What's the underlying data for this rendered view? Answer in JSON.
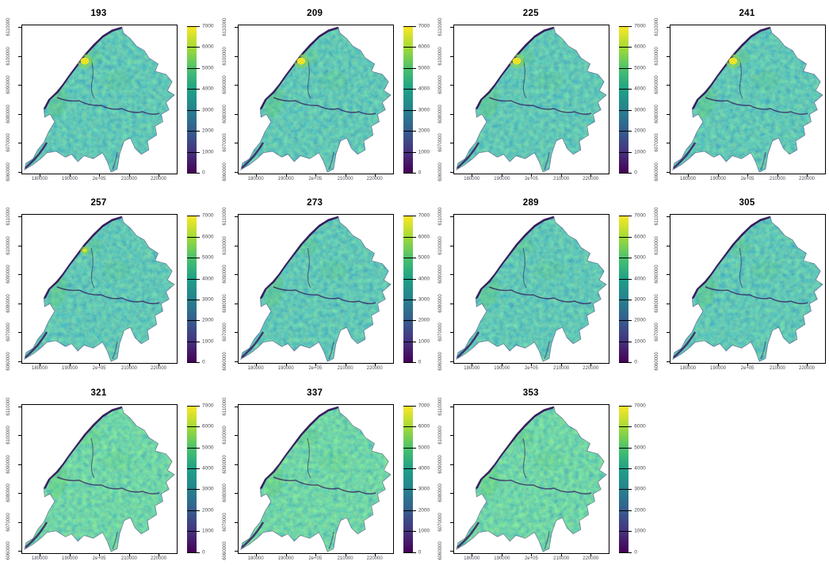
{
  "figure": {
    "background": "#ffffff",
    "title_color": "#000000",
    "tick_label_color": "#4a4a55",
    "panels": [
      {
        "title": "193",
        "hotspot": "large",
        "tone": "teal",
        "has_colorbar": true
      },
      {
        "title": "209",
        "hotspot": "large",
        "tone": "teal",
        "has_colorbar": true
      },
      {
        "title": "225",
        "hotspot": "large",
        "tone": "teal",
        "has_colorbar": true
      },
      {
        "title": "241",
        "hotspot": "large",
        "tone": "teal",
        "has_colorbar": false
      },
      {
        "title": "257",
        "hotspot": "small",
        "tone": "teal",
        "has_colorbar": true
      },
      {
        "title": "273",
        "hotspot": "none",
        "tone": "teal",
        "has_colorbar": true
      },
      {
        "title": "289",
        "hotspot": "none",
        "tone": "teal",
        "has_colorbar": true
      },
      {
        "title": "305",
        "hotspot": "none",
        "tone": "teal",
        "has_colorbar": false
      },
      {
        "title": "321",
        "hotspot": "none",
        "tone": "green",
        "has_colorbar": true
      },
      {
        "title": "337",
        "hotspot": "none",
        "tone": "green",
        "has_colorbar": true
      },
      {
        "title": "353",
        "hotspot": "none",
        "tone": "green",
        "has_colorbar": true
      }
    ],
    "x_ticks": [
      "180000",
      "190000",
      "2e+05",
      "210000",
      "220000"
    ],
    "y_ticks": [
      "6110000",
      "6100000",
      "6090000",
      "6080000",
      "6070000",
      "6060000"
    ],
    "colorbar_ticks": [
      "7000",
      "6000",
      "5000",
      "4000",
      "3000",
      "2000",
      "1000",
      "0"
    ]
  },
  "chart_data": {
    "type": "heatmap",
    "subtype": "raster_map_small_multiples",
    "n_panels": 11,
    "grid": {
      "rows": 3,
      "cols": 4,
      "last_row_panels": 3
    },
    "panel_titles": [
      "193",
      "209",
      "225",
      "241",
      "257",
      "273",
      "289",
      "305",
      "321",
      "337",
      "353"
    ],
    "panel_title_step": 16,
    "x_axis": {
      "tick_values": [
        180000,
        190000,
        200000,
        210000,
        220000
      ],
      "tick_labels": [
        "180000",
        "190000",
        "2e+05",
        "210000",
        "220000"
      ],
      "range_approx": [
        174000,
        225500
      ]
    },
    "y_axis": {
      "tick_values": [
        6060000,
        6070000,
        6080000,
        6090000,
        6100000,
        6110000
      ],
      "tick_labels": [
        "6060000",
        "6070000",
        "6080000",
        "6090000",
        "6100000",
        "6110000"
      ],
      "range_approx": [
        6059000,
        6111000
      ],
      "tick_label_rotation_deg": 90
    },
    "legend": {
      "type": "colorbar",
      "palette": "viridis",
      "range": [
        0,
        7000
      ],
      "tick_values": [
        0,
        1000,
        2000,
        3000,
        4000,
        5000,
        6000,
        7000
      ],
      "position": "right_of_each_panel",
      "clipped_on_fourth_column": true
    },
    "palette_hex": [
      "#440154",
      "#46327e",
      "#365c8d",
      "#277f8e",
      "#1fa187",
      "#4ac16d",
      "#a0da39",
      "#fde725"
    ],
    "content_notes": [
      "Each panel shows the same coastal region raster; bulk of values ~2500-4500 (teal/green).",
      "Dark purple (~0) band along the northwest coastline and along river valleys in every panel.",
      "Bright yellow high-value patch (~6500-7000) near x=196000, y=6097000 in panels 193, 209, 225, 241; smaller in 257; absent afterwards.",
      "Panels 321-353 appear slightly greener/brighter overall."
    ]
  }
}
